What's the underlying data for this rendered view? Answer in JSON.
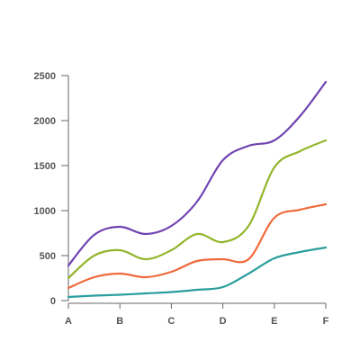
{
  "chart_data": {
    "type": "line",
    "title": "",
    "xlabel": "",
    "ylabel": "",
    "x": [
      0,
      0.5,
      1,
      1.5,
      2,
      2.5,
      3,
      3.5,
      4,
      4.5,
      5
    ],
    "categories": [
      "A",
      "B",
      "C",
      "D",
      "E",
      "F"
    ],
    "y_ticks": [
      "0",
      "500",
      "1000",
      "1500",
      "2000",
      "2500"
    ],
    "ylim": [
      0,
      2500
    ],
    "xlim": [
      0,
      5
    ],
    "grid": false,
    "legend": "none",
    "series": [
      {
        "color": "#2a9d9e",
        "values": [
          40,
          55,
          65,
          80,
          95,
          120,
          150,
          300,
          470,
          540,
          590
        ]
      },
      {
        "color": "#ee6a3c",
        "values": [
          140,
          260,
          300,
          260,
          320,
          440,
          460,
          460,
          920,
          1010,
          1070
        ]
      },
      {
        "color": "#93b52b",
        "values": [
          250,
          500,
          560,
          460,
          560,
          740,
          650,
          830,
          1480,
          1660,
          1780
        ]
      },
      {
        "color": "#7043b2",
        "values": [
          390,
          730,
          820,
          740,
          830,
          1100,
          1560,
          1720,
          1780,
          2050,
          2430
        ]
      }
    ]
  }
}
